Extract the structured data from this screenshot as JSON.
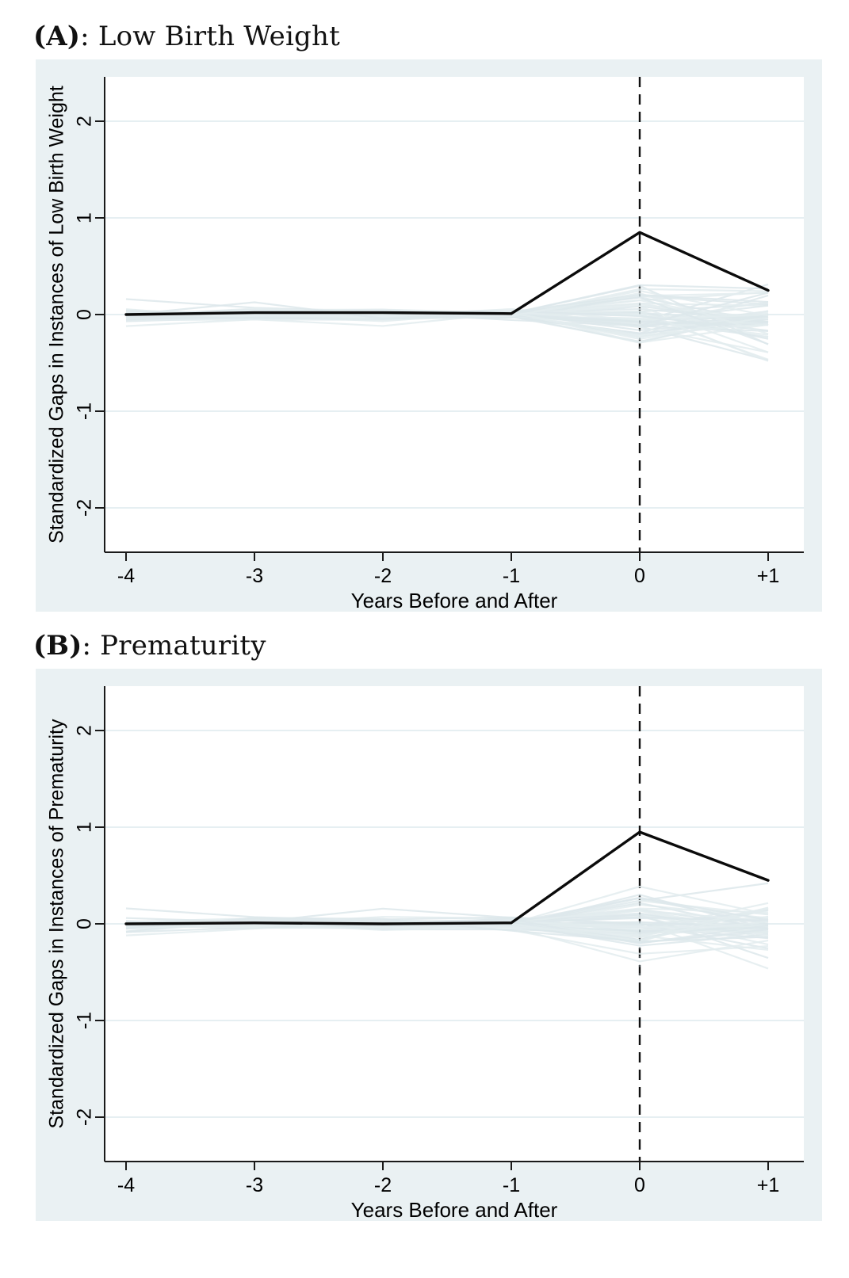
{
  "page": {
    "background": "#ffffff"
  },
  "colors": {
    "panel_background": "#eaf1f3",
    "plot_background": "#ffffff",
    "gridline": "#e2edf0",
    "axis": "#1a1a1a",
    "treatment_line": "#0b0b0b",
    "placebo_line_light": "#e3ecee",
    "placebo_line_dark": "#dde8eb",
    "dashed_vline": "#111111",
    "text": "#000000"
  },
  "chart_data": [
    {
      "panel": "A",
      "type": "line",
      "title": "(A): Low Birth Weight",
      "title_prefix": "(A)",
      "title_rest": ": Low Birth Weight",
      "xlabel": "Years Before and After",
      "ylabel": "Standardized Gaps in Instances of Low Birth Weight",
      "x": [
        -4,
        -3,
        -2,
        -1,
        0,
        1
      ],
      "x_tick_labels": [
        "-4",
        "-3",
        "-2",
        "-1",
        "0",
        "+1"
      ],
      "y_ticks": [
        2,
        1,
        0,
        -1,
        -2
      ],
      "y_tick_labels": [
        "2",
        "1",
        "0",
        "-1",
        "-2"
      ],
      "ylim": [
        -2.46,
        2.46
      ],
      "vline_x": 0,
      "grid": true,
      "legend": "none",
      "series": [
        {
          "name": "treated-unit-gap",
          "color": "#0b0b0b",
          "values": [
            0,
            0.02,
            0.02,
            0.01,
            0.85,
            0.25
          ]
        }
      ],
      "placebo_lines": {
        "count": 55,
        "seed": 11,
        "approx_range_pre": [
          -0.18,
          0.18
        ],
        "approx_range_at_0": [
          -0.5,
          0.52
        ],
        "approx_range_at_plus1": [
          -0.7,
          0.4
        ]
      }
    },
    {
      "panel": "B",
      "type": "line",
      "title": "(B): Prematurity",
      "title_prefix": "(B)",
      "title_rest": ": Prematurity",
      "xlabel": "Years Before and After",
      "ylabel": "Standardized Gaps in Instances of Prematurity",
      "x": [
        -4,
        -3,
        -2,
        -1,
        0,
        1
      ],
      "x_tick_labels": [
        "-4",
        "-3",
        "-2",
        "-1",
        "0",
        "+1"
      ],
      "y_ticks": [
        2,
        1,
        0,
        -1,
        -2
      ],
      "y_tick_labels": [
        "2",
        "1",
        "0",
        "-1",
        "-2"
      ],
      "ylim": [
        -2.46,
        2.46
      ],
      "vline_x": 0,
      "grid": true,
      "legend": "none",
      "series": [
        {
          "name": "treated-unit-gap",
          "color": "#0b0b0b",
          "values": [
            0,
            0.01,
            0,
            0.01,
            0.95,
            0.45
          ]
        }
      ],
      "placebo_lines": {
        "count": 55,
        "seed": 23,
        "approx_range_pre": [
          -0.18,
          0.18
        ],
        "approx_range_at_0": [
          -0.5,
          0.5
        ],
        "approx_range_at_plus1": [
          -0.6,
          0.42
        ]
      }
    }
  ]
}
